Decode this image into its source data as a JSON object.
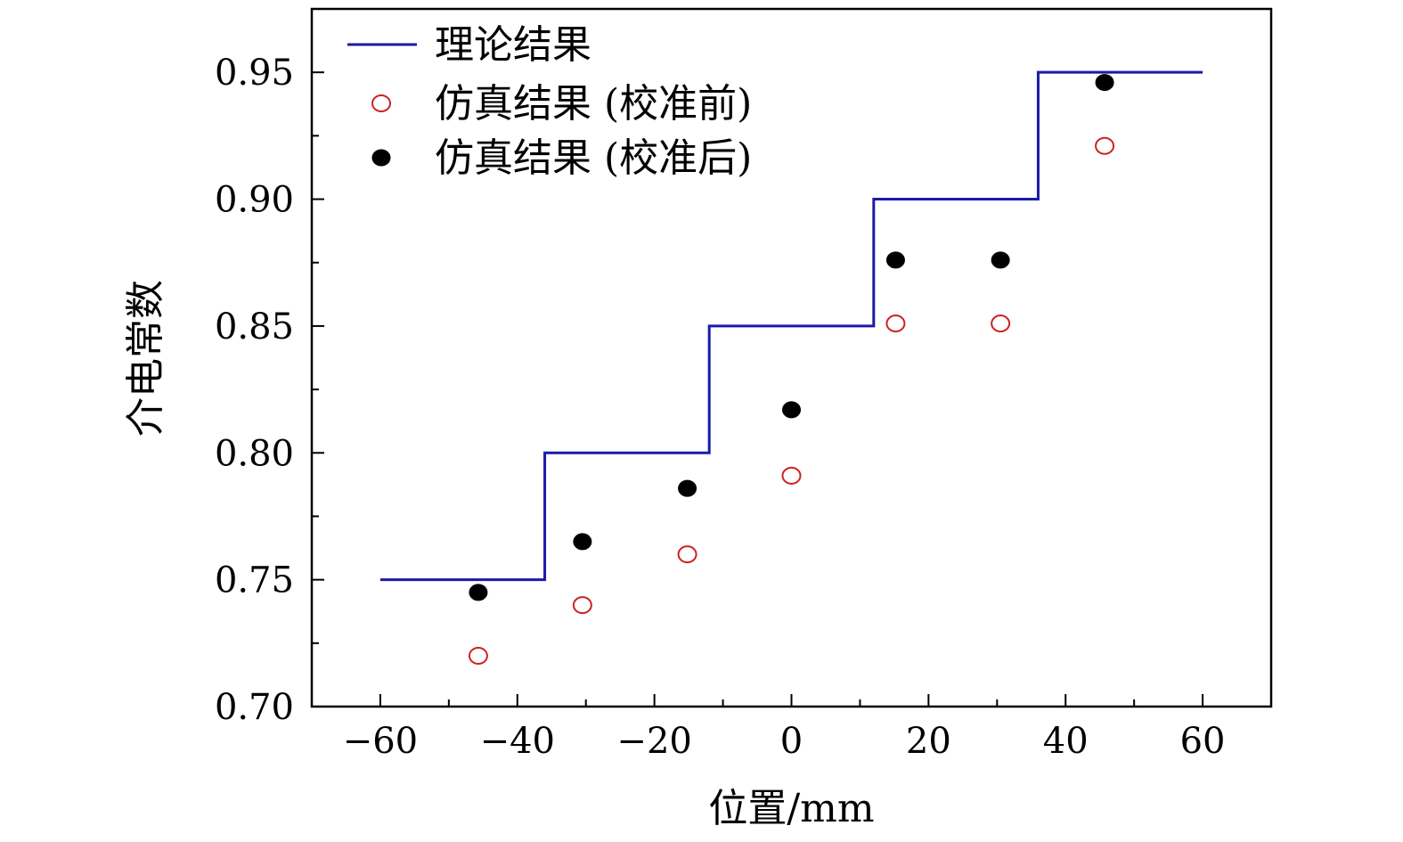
{
  "chart_data": {
    "type": "line",
    "title": "",
    "xlabel": "位置/mm",
    "ylabel": "介电常数",
    "xlim": [
      -70,
      70
    ],
    "ylim": [
      0.7,
      0.975
    ],
    "x_ticks": [
      -60,
      -40,
      -20,
      0,
      20,
      40,
      60
    ],
    "x_tick_labels": [
      "−60",
      "−40",
      "−20",
      "0",
      "20",
      "40",
      "60"
    ],
    "y_ticks": [
      0.7,
      0.75,
      0.8,
      0.85,
      0.9,
      0.95
    ],
    "y_tick_labels": [
      "0.70",
      "0.75",
      "0.80",
      "0.85",
      "0.90",
      "0.95"
    ],
    "grid": false,
    "legend_position": "top-left",
    "series": [
      {
        "name": "理论结果",
        "kind": "step-line",
        "color": "#1a1aaa",
        "x": [
          -60,
          -36,
          -36,
          -12,
          -12,
          12,
          12,
          36,
          36,
          60
        ],
        "y": [
          0.75,
          0.75,
          0.8,
          0.8,
          0.85,
          0.85,
          0.9,
          0.9,
          0.95,
          0.95
        ]
      },
      {
        "name": "仿真结果 (校准前)",
        "kind": "scatter-open",
        "color": "#cc2222",
        "x": [
          -45.7,
          -30.5,
          -15.2,
          0,
          15.2,
          30.5,
          45.7
        ],
        "y": [
          0.72,
          0.74,
          0.76,
          0.791,
          0.851,
          0.851,
          0.921
        ]
      },
      {
        "name": "仿真结果 (校准后)",
        "kind": "scatter-filled",
        "color": "#000000",
        "x": [
          -45.7,
          -30.5,
          -15.2,
          0,
          15.2,
          30.5,
          45.7
        ],
        "y": [
          0.745,
          0.765,
          0.786,
          0.817,
          0.876,
          0.876,
          0.946
        ]
      }
    ]
  }
}
